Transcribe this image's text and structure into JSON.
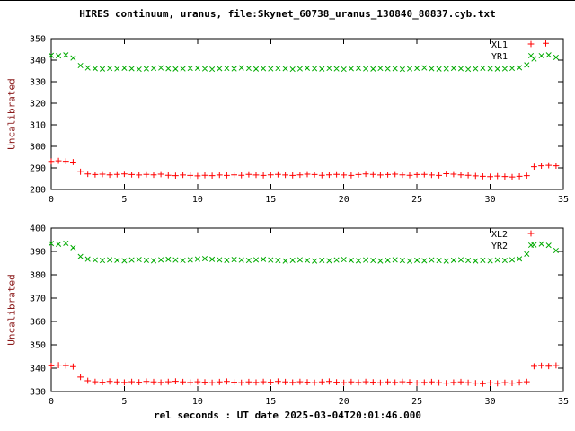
{
  "title": "HIRES continuum, uranus, file:Skynet_60738_uranus_130840_80837.cyb.txt",
  "xlabel": "rel seconds : UT date 2025-03-04T20:01:46.000",
  "ylabel": "Uncalibrated",
  "colors": {
    "red": "#ff0000",
    "green": "#00aa00",
    "ylabel_text": "#8b1a1a",
    "axis": "#000000",
    "background": "#ffffff"
  },
  "chart_data": [
    {
      "type": "scatter",
      "panel": "top",
      "ylabel": "Uncalibrated",
      "xlim": [
        0,
        35
      ],
      "ylim": [
        280,
        350
      ],
      "xticks": [
        0,
        5,
        10,
        15,
        20,
        25,
        30,
        35
      ],
      "yticks": [
        280,
        290,
        300,
        310,
        320,
        330,
        340,
        350
      ],
      "legend_position": "top-right",
      "grid": false,
      "x": [
        0,
        0.5,
        1,
        1.5,
        2,
        2.5,
        3,
        3.5,
        4,
        4.5,
        5,
        5.5,
        6,
        6.5,
        7,
        7.5,
        8,
        8.5,
        9,
        9.5,
        10,
        10.5,
        11,
        11.5,
        12,
        12.5,
        13,
        13.5,
        14,
        14.5,
        15,
        15.5,
        16,
        16.5,
        17,
        17.5,
        18,
        18.5,
        19,
        19.5,
        20,
        20.5,
        21,
        21.5,
        22,
        22.5,
        23,
        23.5,
        24,
        24.5,
        25,
        25.5,
        26,
        26.5,
        27,
        27.5,
        28,
        28.5,
        29,
        29.5,
        30,
        30.5,
        31,
        31.5,
        32,
        32.5,
        33,
        33.5,
        34,
        34.5
      ],
      "series": [
        {
          "name": "XL1",
          "marker": "plus",
          "color": "#ff0000",
          "values": [
            293.0,
            293.3,
            293.1,
            292.7,
            288.2,
            287.2,
            286.9,
            287.1,
            286.8,
            287.0,
            287.2,
            286.9,
            286.7,
            287.0,
            286.8,
            287.1,
            286.6,
            286.4,
            286.7,
            286.5,
            286.3,
            286.6,
            286.4,
            286.7,
            286.5,
            286.8,
            286.6,
            287.0,
            286.7,
            286.5,
            286.8,
            287.0,
            286.7,
            286.5,
            286.8,
            287.1,
            286.9,
            286.6,
            286.8,
            287.0,
            286.7,
            286.5,
            286.9,
            287.2,
            287.0,
            286.7,
            286.9,
            287.1,
            286.8,
            286.6,
            286.9,
            287.0,
            286.7,
            286.5,
            287.3,
            287.1,
            286.8,
            286.6,
            286.3,
            286.1,
            285.9,
            286.2,
            286.0,
            285.8,
            286.1,
            286.4,
            290.6,
            291.0,
            291.2,
            291.0
          ],
          "extra_points": [
            [
              33.8,
              347.8
            ]
          ]
        },
        {
          "name": "YR1",
          "marker": "cross",
          "color": "#00aa00",
          "values": [
            342.2,
            342.0,
            342.4,
            341.0,
            337.5,
            336.4,
            336.1,
            335.9,
            336.2,
            336.0,
            336.3,
            336.1,
            335.8,
            336.0,
            336.2,
            336.4,
            336.1,
            335.9,
            336.0,
            336.2,
            336.3,
            336.0,
            335.8,
            336.1,
            336.2,
            336.0,
            336.4,
            336.2,
            335.9,
            336.1,
            336.0,
            336.2,
            336.1,
            335.8,
            336.0,
            336.3,
            336.1,
            335.9,
            336.2,
            336.0,
            335.8,
            336.1,
            336.3,
            336.0,
            335.9,
            336.2,
            336.0,
            336.1,
            335.8,
            336.0,
            336.2,
            336.4,
            336.1,
            335.9,
            336.0,
            336.2,
            336.1,
            335.8,
            336.0,
            336.3,
            336.1,
            335.9,
            336.0,
            336.2,
            336.5,
            337.8,
            340.6,
            342.1,
            342.4,
            341.3
          ]
        }
      ]
    },
    {
      "type": "scatter",
      "panel": "bottom",
      "ylabel": "Uncalibrated",
      "xlabel": "rel seconds : UT date 2025-03-04T20:01:46.000",
      "xlim": [
        0,
        35
      ],
      "ylim": [
        330,
        400
      ],
      "xticks": [
        0,
        5,
        10,
        15,
        20,
        25,
        30,
        35
      ],
      "yticks": [
        330,
        340,
        350,
        360,
        370,
        380,
        390,
        400
      ],
      "legend_position": "top-right",
      "grid": false,
      "x": [
        0,
        0.5,
        1,
        1.5,
        2,
        2.5,
        3,
        3.5,
        4,
        4.5,
        5,
        5.5,
        6,
        6.5,
        7,
        7.5,
        8,
        8.5,
        9,
        9.5,
        10,
        10.5,
        11,
        11.5,
        12,
        12.5,
        13,
        13.5,
        14,
        14.5,
        15,
        15.5,
        16,
        16.5,
        17,
        17.5,
        18,
        18.5,
        19,
        19.5,
        20,
        20.5,
        21,
        21.5,
        22,
        22.5,
        23,
        23.5,
        24,
        24.5,
        25,
        25.5,
        26,
        26.5,
        27,
        27.5,
        28,
        28.5,
        29,
        29.5,
        30,
        30.5,
        31,
        31.5,
        32,
        32.5,
        33,
        33.5,
        34,
        34.5
      ],
      "series": [
        {
          "name": "XL2",
          "marker": "plus",
          "color": "#ff0000",
          "values": [
            341.0,
            341.3,
            341.1,
            340.7,
            336.2,
            334.6,
            334.2,
            334.0,
            334.3,
            334.1,
            333.9,
            334.2,
            334.0,
            334.3,
            334.1,
            333.9,
            334.2,
            334.4,
            334.1,
            333.9,
            334.2,
            334.0,
            333.8,
            334.1,
            334.3,
            334.0,
            333.8,
            334.1,
            333.9,
            334.2,
            334.0,
            334.3,
            334.1,
            333.9,
            334.2,
            334.0,
            333.8,
            334.1,
            334.3,
            334.0,
            333.8,
            334.1,
            333.9,
            334.2,
            334.0,
            333.8,
            334.1,
            333.9,
            334.2,
            334.0,
            333.7,
            333.9,
            334.1,
            333.8,
            333.6,
            333.9,
            334.1,
            333.8,
            333.6,
            333.4,
            333.7,
            333.5,
            333.8,
            333.6,
            333.9,
            334.2,
            340.8,
            341.1,
            340.9,
            341.2
          ]
        },
        {
          "name": "YR2",
          "marker": "cross",
          "color": "#00aa00",
          "values": [
            393.4,
            393.1,
            393.5,
            391.6,
            387.8,
            386.7,
            386.3,
            386.1,
            386.4,
            386.2,
            386.0,
            386.3,
            386.5,
            386.2,
            386.0,
            386.4,
            386.6,
            386.3,
            386.1,
            386.4,
            386.7,
            386.9,
            386.6,
            386.4,
            386.2,
            386.5,
            386.3,
            386.1,
            386.4,
            386.6,
            386.3,
            386.1,
            385.9,
            386.2,
            386.4,
            386.1,
            385.9,
            386.2,
            386.0,
            386.3,
            386.5,
            386.2,
            386.0,
            386.3,
            386.1,
            385.9,
            386.2,
            386.4,
            386.1,
            385.9,
            386.2,
            386.0,
            386.3,
            386.1,
            385.9,
            386.2,
            386.4,
            386.1,
            385.9,
            386.2,
            386.0,
            386.3,
            386.1,
            386.4,
            386.8,
            388.9,
            392.8,
            393.2,
            392.6,
            390.4
          ]
        }
      ]
    }
  ]
}
